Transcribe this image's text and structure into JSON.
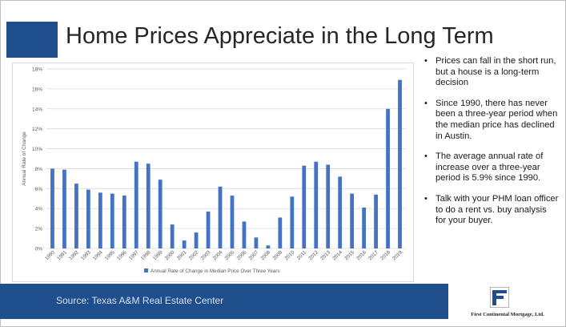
{
  "slide": {
    "title": "Home Prices Appreciate in the Long Term",
    "source": "Source: Texas A&M Real Estate Center",
    "logo_text": "First Continental Mortgage, Ltd.",
    "accent_color": "#1f4e8c"
  },
  "bullets": [
    "Prices can fall in the short run, but a house is a long-term decision",
    "Since 1990, there has never been a three-year period when the median price has declined in Austin.",
    "The average annual rate of increase over a three-year period is 5.9% since 1990.",
    "Talk with your PHM loan officer to do a rent vs. buy analysis for your buyer."
  ],
  "chart_data": {
    "type": "bar",
    "title": "",
    "xlabel": "",
    "ylabel": "Annual Rate of Change",
    "ylim": [
      0,
      18
    ],
    "yticks": [
      0,
      2,
      4,
      6,
      8,
      10,
      12,
      14,
      16,
      18
    ],
    "ytick_labels": [
      "0%",
      "2%",
      "4%",
      "6%",
      "8%",
      "10%",
      "12%",
      "14%",
      "16%",
      "18%"
    ],
    "categories": [
      "1990",
      "1991",
      "1992",
      "1993",
      "1994",
      "1995",
      "1996",
      "1997",
      "1998",
      "1999",
      "2000",
      "2001",
      "2002",
      "2003",
      "2004",
      "2005",
      "2006",
      "2007",
      "2008",
      "2009",
      "2010",
      "2011",
      "2012",
      "2013",
      "2014",
      "2015",
      "2016",
      "2017",
      "2018",
      "2019"
    ],
    "series": [
      {
        "name": "Annual Rate of Change in Median Price Over Three Years",
        "color": "#4472c4",
        "values": [
          8.0,
          7.9,
          6.5,
          5.9,
          5.6,
          5.5,
          5.3,
          8.7,
          8.5,
          6.9,
          2.4,
          0.8,
          1.6,
          3.7,
          6.2,
          5.3,
          2.7,
          1.1,
          0.3,
          3.1,
          5.2,
          8.3,
          8.7,
          8.4,
          7.2,
          5.5,
          4.1,
          5.4,
          14.0,
          16.9
        ]
      }
    ],
    "grid": true,
    "legend": "bottom"
  }
}
